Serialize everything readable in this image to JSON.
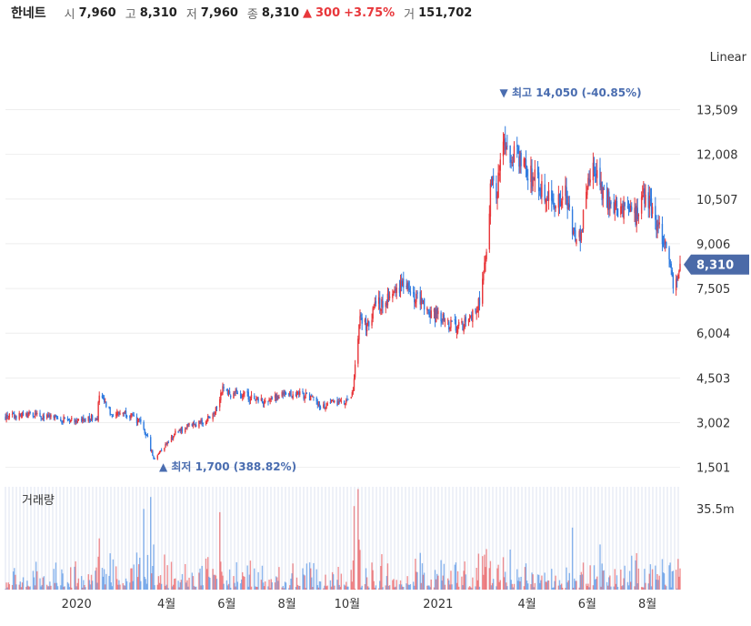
{
  "header": {
    "stock_name": "한네트",
    "open_label": "시",
    "open": "7,960",
    "high_label": "고",
    "high": "8,310",
    "low_label": "저",
    "low": "7,960",
    "close_label": "종",
    "close": "8,310",
    "change_arrow": "▲",
    "change": "300",
    "change_pct": "+3.75%",
    "volume_label": "거",
    "volume": "151,702"
  },
  "scale_mode": "Linear",
  "volume_panel_label": "거래량",
  "current_price_tag": "8,310",
  "colors": {
    "up": "#e8373b",
    "down": "#2f7be0",
    "tag": "#4b6aa8",
    "annot": "#4a6db0"
  },
  "chart_data": {
    "type": "candlestick",
    "x_tick_labels": [
      "2020",
      "4월",
      "6월",
      "8월",
      "10월",
      "2021",
      "4월",
      "6월",
      "8월"
    ],
    "x_tick_dates": [
      "2020-01-01",
      "2020-04-01",
      "2020-06-01",
      "2020-08-01",
      "2020-10-01",
      "2021-01-01",
      "2021-04-01",
      "2021-06-01",
      "2021-08-01"
    ],
    "x_range": [
      "2019-10-21",
      "2021-09-03"
    ],
    "y_tick_labels": [
      "1,501",
      "3,002",
      "4,503",
      "6,004",
      "7,505",
      "9,006",
      "10,507",
      "12,008",
      "13,509"
    ],
    "y_ticks": [
      1501,
      3002,
      4503,
      6004,
      7505,
      9006,
      10507,
      12008,
      13509
    ],
    "y_range": [
      1000,
      14900
    ],
    "volume_tick_label": "35.5m",
    "volume_tick": 35.5,
    "volume_range_m": [
      0,
      45
    ],
    "high_annotation": {
      "text": "▼ 최고 14,050 (-40.85%)",
      "date": "2021-03-08",
      "value": 14050
    },
    "low_annotation": {
      "text": "▲ 최저 1,700 (388.82%)",
      "date": "2020-03-19",
      "value": 1700
    },
    "price_path": [
      [
        "2019-10-21",
        3180
      ],
      [
        "2019-11-15",
        3260
      ],
      [
        "2019-12-15",
        3120
      ],
      [
        "2020-01-10",
        3080
      ],
      [
        "2020-01-22",
        3200
      ],
      [
        "2020-01-24",
        3950
      ],
      [
        "2020-02-05",
        3300
      ],
      [
        "2020-02-20",
        3350
      ],
      [
        "2020-03-05",
        3000
      ],
      [
        "2020-03-12",
        2550
      ],
      [
        "2020-03-19",
        1800
      ],
      [
        "2020-03-26",
        2050
      ],
      [
        "2020-04-10",
        2650
      ],
      [
        "2020-04-25",
        2900
      ],
      [
        "2020-05-10",
        3050
      ],
      [
        "2020-05-20",
        3400
      ],
      [
        "2020-05-28",
        4200
      ],
      [
        "2020-06-05",
        3950
      ],
      [
        "2020-06-15",
        4000
      ],
      [
        "2020-06-25",
        3850
      ],
      [
        "2020-07-10",
        3700
      ],
      [
        "2020-07-25",
        3900
      ],
      [
        "2020-08-10",
        4000
      ],
      [
        "2020-08-25",
        3850
      ],
      [
        "2020-09-05",
        3500
      ],
      [
        "2020-09-20",
        3700
      ],
      [
        "2020-09-29",
        3650
      ],
      [
        "2020-10-06",
        3900
      ],
      [
        "2020-10-10",
        5200
      ],
      [
        "2020-10-14",
        6600
      ],
      [
        "2020-10-20",
        6200
      ],
      [
        "2020-10-30",
        6900
      ],
      [
        "2020-11-10",
        7200
      ],
      [
        "2020-11-20",
        7500
      ],
      [
        "2020-11-28",
        7800
      ],
      [
        "2020-12-08",
        7300
      ],
      [
        "2020-12-16",
        7000
      ],
      [
        "2020-12-25",
        6700
      ],
      [
        "2021-01-08",
        6400
      ],
      [
        "2021-01-20",
        6200
      ],
      [
        "2021-02-01",
        6400
      ],
      [
        "2021-02-10",
        6900
      ],
      [
        "2021-02-15",
        7600
      ],
      [
        "2021-02-20",
        9400
      ],
      [
        "2021-02-24",
        11200
      ],
      [
        "2021-03-02",
        10800
      ],
      [
        "2021-03-08",
        12300
      ],
      [
        "2021-03-15",
        11800
      ],
      [
        "2021-03-22",
        12000
      ],
      [
        "2021-04-01",
        11400
      ],
      [
        "2021-04-15",
        10900
      ],
      [
        "2021-05-01",
        10300
      ],
      [
        "2021-05-10",
        10600
      ],
      [
        "2021-05-17",
        9400
      ],
      [
        "2021-05-25",
        9100
      ],
      [
        "2021-05-31",
        10600
      ],
      [
        "2021-06-05",
        11600
      ],
      [
        "2021-06-15",
        10800
      ],
      [
        "2021-06-25",
        10400
      ],
      [
        "2021-07-10",
        10000
      ],
      [
        "2021-07-20",
        9900
      ],
      [
        "2021-07-28",
        10700
      ],
      [
        "2021-08-05",
        10300
      ],
      [
        "2021-08-12",
        9500
      ],
      [
        "2021-08-20",
        9000
      ],
      [
        "2021-08-27",
        7600
      ],
      [
        "2021-09-01",
        8100
      ],
      [
        "2021-09-03",
        8310
      ]
    ]
  }
}
